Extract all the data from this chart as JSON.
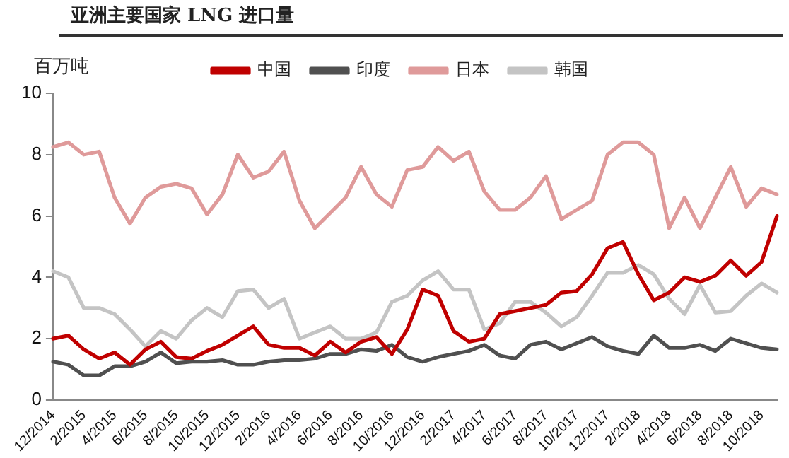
{
  "chart_data": {
    "type": "line",
    "title": "亚洲主要国家 LNG 进口量",
    "ylabel": "百万吨",
    "categories": [
      "12/2014",
      null,
      "2/2015",
      null,
      "4/2015",
      null,
      "6/2015",
      null,
      "8/2015",
      null,
      "10/2015",
      null,
      "12/2015",
      null,
      "2/2016",
      null,
      "4/2016",
      null,
      "6/2016",
      null,
      "8/2016",
      null,
      "10/2016",
      null,
      "12/2016",
      null,
      "2/2017",
      null,
      "4/2017",
      null,
      "6/2017",
      null,
      "8/2017",
      null,
      "10/2017",
      null,
      "12/2017",
      null,
      "2/2018",
      null,
      "4/2018",
      null,
      "6/2018",
      null,
      "8/2018",
      null,
      "10/2018",
      null
    ],
    "series": [
      {
        "name": "中国",
        "color": "#c00000",
        "values": [
          2.0,
          2.1,
          1.65,
          1.35,
          1.55,
          1.15,
          1.65,
          1.9,
          1.4,
          1.35,
          1.6,
          1.8,
          2.1,
          2.4,
          1.8,
          1.7,
          1.7,
          1.45,
          1.9,
          1.55,
          1.9,
          2.05,
          1.5,
          2.3,
          3.6,
          3.4,
          2.25,
          1.9,
          2.0,
          2.8,
          2.9,
          3.0,
          3.1,
          3.5,
          3.55,
          4.1,
          4.95,
          5.15,
          4.1,
          3.25,
          3.5,
          4.0,
          3.85,
          4.05,
          4.55,
          4.05,
          4.5,
          6.0
        ]
      },
      {
        "name": "印度",
        "color": "#505050",
        "values": [
          1.25,
          1.15,
          0.8,
          0.8,
          1.1,
          1.1,
          1.25,
          1.55,
          1.2,
          1.25,
          1.25,
          1.3,
          1.15,
          1.15,
          1.25,
          1.3,
          1.3,
          1.35,
          1.5,
          1.5,
          1.65,
          1.6,
          1.8,
          1.4,
          1.25,
          1.4,
          1.5,
          1.6,
          1.8,
          1.45,
          1.35,
          1.8,
          1.9,
          1.65,
          1.85,
          2.05,
          1.75,
          1.6,
          1.5,
          2.1,
          1.7,
          1.7,
          1.8,
          1.6,
          2.0,
          1.85,
          1.7,
          1.65
        ]
      },
      {
        "name": "日本",
        "color": "#df9a9a",
        "values": [
          8.25,
          8.4,
          8.0,
          8.1,
          6.6,
          5.75,
          6.6,
          6.95,
          7.05,
          6.9,
          6.05,
          6.7,
          8.0,
          7.25,
          7.45,
          8.1,
          6.5,
          5.6,
          6.1,
          6.6,
          7.6,
          6.7,
          6.3,
          7.5,
          7.6,
          8.25,
          7.8,
          8.1,
          6.8,
          6.2,
          6.2,
          6.6,
          7.3,
          5.9,
          6.2,
          6.5,
          8.0,
          8.4,
          8.4,
          8.0,
          5.6,
          6.6,
          5.6,
          6.6,
          7.6,
          6.3,
          6.9,
          6.7
        ]
      },
      {
        "name": "韩国",
        "color": "#c4c4c4",
        "values": [
          4.2,
          4.0,
          3.0,
          3.0,
          2.8,
          2.3,
          1.75,
          2.25,
          2.0,
          2.6,
          3.0,
          2.7,
          3.55,
          3.6,
          3.0,
          3.3,
          2.0,
          2.2,
          2.4,
          2.0,
          2.0,
          2.2,
          3.2,
          3.4,
          3.9,
          4.2,
          3.6,
          3.6,
          2.3,
          2.5,
          3.2,
          3.2,
          2.85,
          2.4,
          2.7,
          3.4,
          4.15,
          4.15,
          4.4,
          4.1,
          3.3,
          2.8,
          3.75,
          2.85,
          2.9,
          3.4,
          3.8,
          3.5
        ]
      }
    ],
    "ylim": [
      0,
      10
    ],
    "yticks": [
      0,
      2,
      4,
      6,
      8,
      10
    ],
    "grid": false,
    "legend": "top",
    "marker": "none",
    "line_style": "solid"
  }
}
